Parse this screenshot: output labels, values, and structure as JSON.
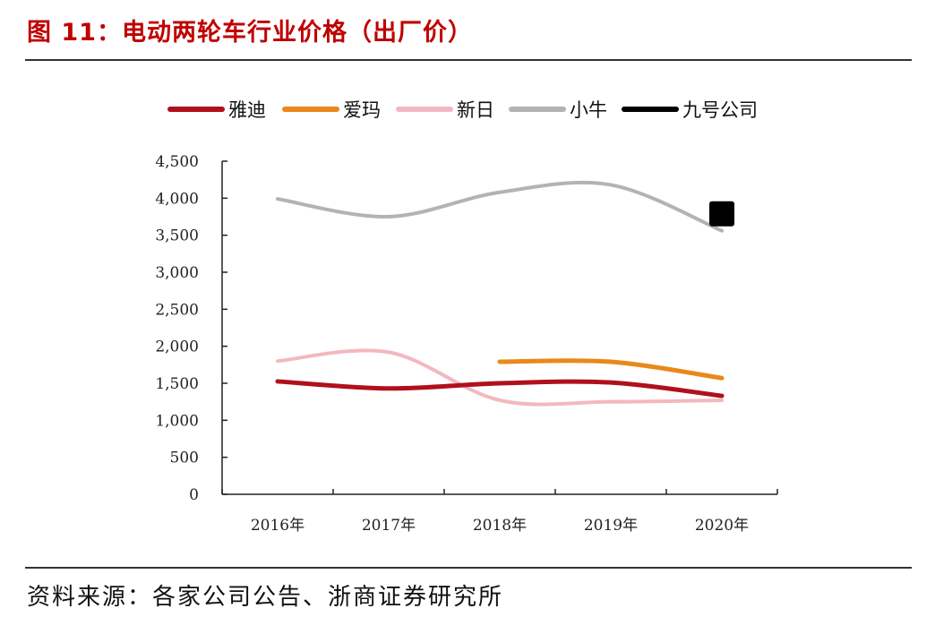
{
  "title": "图 11：电动两轮车行业价格（出厂价）",
  "source": "资料来源：各家公司公告、浙商证券研究所",
  "chart_data": {
    "type": "line",
    "categories": [
      "2016年",
      "2017年",
      "2018年",
      "2019年",
      "2020年"
    ],
    "ylim": [
      0,
      4500
    ],
    "yticks": [
      "0",
      "500",
      "1,000",
      "1,500",
      "2,000",
      "2,500",
      "3,000",
      "3,500",
      "4,000",
      "4,500"
    ],
    "legend_position": "top",
    "grid": false,
    "series": [
      {
        "name": "雅迪",
        "color": "#b0101c",
        "width": 5,
        "values": [
          1525,
          1430,
          1500,
          1510,
          1330
        ]
      },
      {
        "name": "爱玛",
        "color": "#e8891a",
        "width": 5,
        "values": [
          null,
          null,
          1790,
          1790,
          1570
        ]
      },
      {
        "name": "新日",
        "color": "#f2b8c0",
        "width": 4,
        "values": [
          1800,
          1920,
          1270,
          1250,
          1270
        ]
      },
      {
        "name": "小牛",
        "color": "#b3b3b3",
        "width": 4,
        "values": [
          3990,
          3750,
          4080,
          4180,
          3560
        ]
      },
      {
        "name": "九号公司",
        "color": "#000000",
        "width": 5,
        "marker": "square",
        "values": [
          null,
          null,
          null,
          null,
          3790
        ]
      }
    ]
  }
}
